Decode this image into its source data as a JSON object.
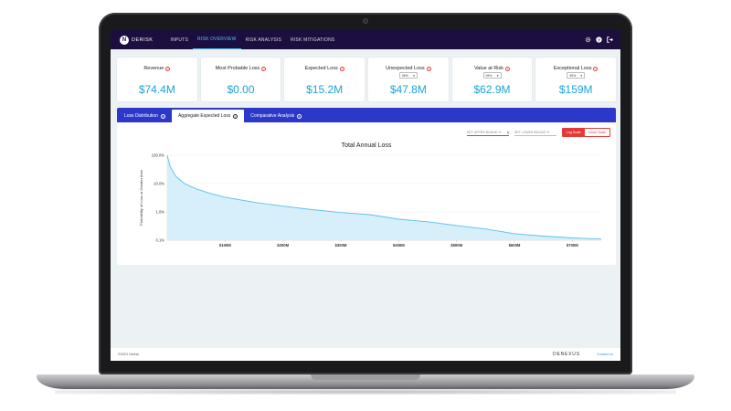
{
  "app": {
    "logo_text": "DERISK",
    "logo_mark": "N"
  },
  "nav": {
    "items": [
      {
        "label": "INPUTS"
      },
      {
        "label": "RISK OVERVIEW"
      },
      {
        "label": "RISK ANALYSIS"
      },
      {
        "label": "RISK MITIGATIONS"
      }
    ],
    "active": "RISK OVERVIEW",
    "icons": [
      "settings-icon",
      "help-icon",
      "logout-icon"
    ]
  },
  "kpis": [
    {
      "title": "Revenue",
      "value": "$74.4M"
    },
    {
      "title": "Most Probable Loss",
      "value": "$0.00"
    },
    {
      "title": "Expected Loss",
      "value": "$15.2M"
    },
    {
      "title": "Unexpected Loss",
      "value": "$47.8M",
      "select": "95%"
    },
    {
      "title": "Value at Risk",
      "value": "$62.9M",
      "select": "95%"
    },
    {
      "title": "Exceptional Loss",
      "value": "$159M",
      "select": "95%"
    }
  ],
  "tabs": [
    {
      "label": "Loss Distribution"
    },
    {
      "label": "Aggregate Expected Loss"
    },
    {
      "label": "Comparative Analysis"
    }
  ],
  "active_tab": "Aggregate Expected Loss",
  "controls": {
    "upper_bound_placeholder": "SET UPPER BOUND %",
    "lower_bound_placeholder": "SET LOWER BOUND %",
    "log_scale_label": "Log Scale",
    "linear_scale_label": "Linear Scale",
    "active_scale": "Log Scale"
  },
  "chart_data": {
    "type": "area",
    "title": "Total Annual Loss",
    "ylabel": "Probability of Loss or Greater than",
    "xlabel": "",
    "y_scale": "log",
    "y_ticks": [
      "100.0%",
      "10.0%",
      "1.0%",
      "0.1%"
    ],
    "x_ticks": [
      "$100M",
      "$200M",
      "$300M",
      "$400M",
      "$500M",
      "$600M",
      "$700M"
    ],
    "xlim": [
      0,
      750
    ],
    "ylim_percent": [
      0.1,
      100
    ],
    "x": [
      0,
      5,
      15,
      30,
      50,
      75,
      100,
      150,
      200,
      250,
      300,
      350,
      400,
      450,
      500,
      550,
      600,
      650,
      700,
      750
    ],
    "y_percent": [
      100,
      40,
      18,
      10,
      6.5,
      4.5,
      3.3,
      2.2,
      1.6,
      1.2,
      0.95,
      0.8,
      0.55,
      0.45,
      0.33,
      0.25,
      0.17,
      0.14,
      0.12,
      0.11
    ],
    "color": "#5bc0eb",
    "fill": "#d6effa"
  },
  "footer": {
    "copyright": "©2021 Derisk",
    "brand": "DENEXUS",
    "contact": "Contact us"
  }
}
